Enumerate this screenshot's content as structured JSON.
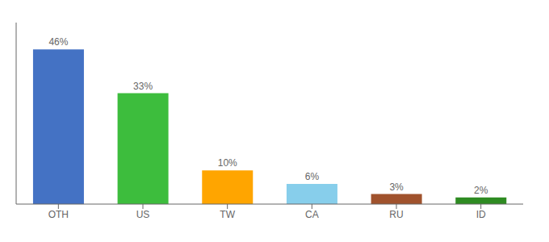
{
  "chart_data": {
    "type": "bar",
    "categories": [
      "OTH",
      "US",
      "TW",
      "CA",
      "RU",
      "ID"
    ],
    "values": [
      46,
      33,
      10,
      6,
      3,
      2
    ],
    "value_labels": [
      "46%",
      "33%",
      "10%",
      "6%",
      "3%",
      "2%"
    ],
    "colors": [
      "#4472C4",
      "#3DBD3D",
      "#FFA500",
      "#87CEEB",
      "#A0522D",
      "#2E8B22"
    ],
    "ylim": [
      0,
      54
    ],
    "grid": false,
    "data_labels": true,
    "tick_labels": "x"
  }
}
